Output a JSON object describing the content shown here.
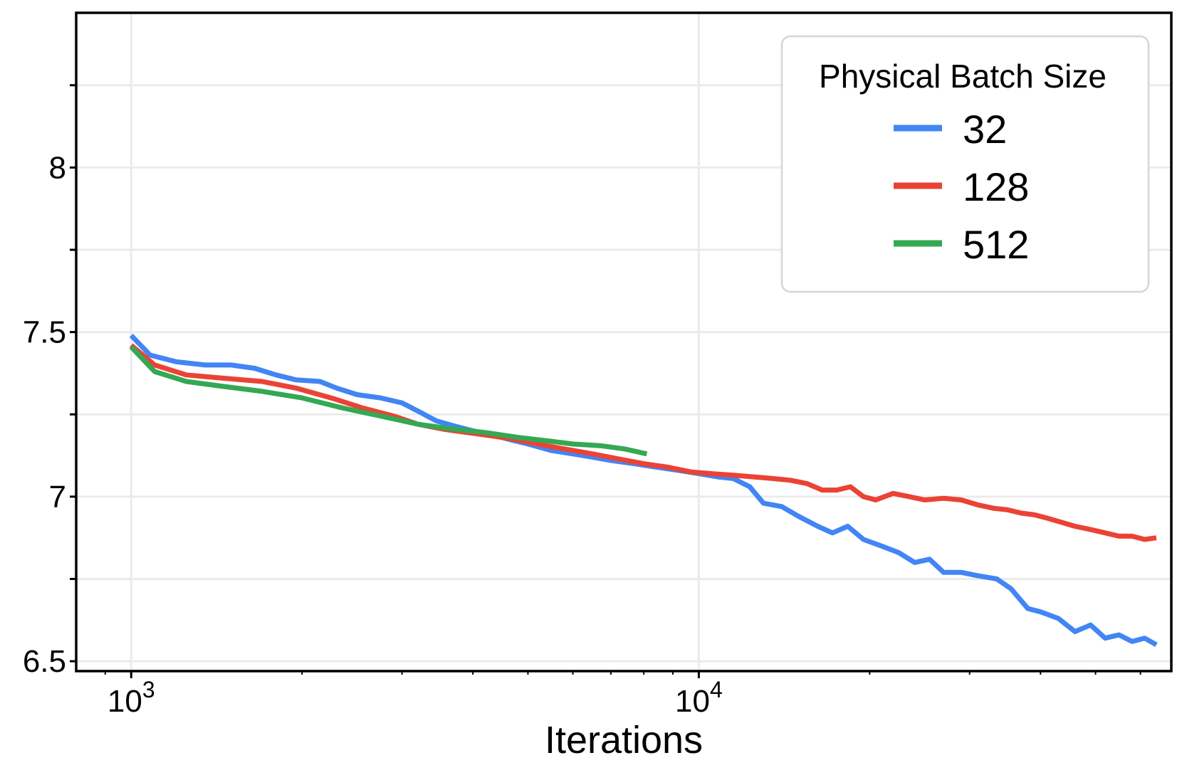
{
  "chart_data": {
    "type": "line",
    "title": "",
    "xlabel": "Iterations",
    "ylabel": "",
    "x_scale": "log",
    "xlim": [
      800,
      68000
    ],
    "ylim": [
      6.47,
      8.47
    ],
    "x_ticks": [
      {
        "value": 1000,
        "base": "10",
        "exp": "3"
      },
      {
        "value": 10000,
        "base": "10",
        "exp": "4"
      }
    ],
    "y_ticks": [
      {
        "value": 6.5,
        "label": "6.5"
      },
      {
        "value": 7,
        "label": "7"
      },
      {
        "value": 7.5,
        "label": "7.5"
      },
      {
        "value": 8,
        "label": "8"
      }
    ],
    "y_minor_ticks": [
      6.75,
      7.25,
      7.75,
      8.25
    ],
    "grid": true,
    "legend": {
      "title": "Physical Batch Size",
      "position": "top-right"
    },
    "series": [
      {
        "name": "32",
        "color": "#4285f4",
        "points": [
          [
            1000,
            7.49
          ],
          [
            1080,
            7.43
          ],
          [
            1200,
            7.41
          ],
          [
            1350,
            7.4
          ],
          [
            1500,
            7.4
          ],
          [
            1650,
            7.39
          ],
          [
            1800,
            7.37
          ],
          [
            1950,
            7.355
          ],
          [
            2150,
            7.35
          ],
          [
            2300,
            7.33
          ],
          [
            2500,
            7.31
          ],
          [
            2750,
            7.3
          ],
          [
            3000,
            7.285
          ],
          [
            3200,
            7.26
          ],
          [
            3450,
            7.23
          ],
          [
            3700,
            7.215
          ],
          [
            4000,
            7.2
          ],
          [
            4300,
            7.19
          ],
          [
            4600,
            7.175
          ],
          [
            5000,
            7.16
          ],
          [
            5500,
            7.14
          ],
          [
            6000,
            7.13
          ],
          [
            6500,
            7.12
          ],
          [
            7000,
            7.11
          ],
          [
            7700,
            7.1
          ],
          [
            8400,
            7.09
          ],
          [
            9200,
            7.08
          ],
          [
            10000,
            7.07
          ],
          [
            10800,
            7.06
          ],
          [
            11500,
            7.055
          ],
          [
            12300,
            7.03
          ],
          [
            13000,
            6.98
          ],
          [
            14000,
            6.97
          ],
          [
            15000,
            6.94
          ],
          [
            16200,
            6.91
          ],
          [
            17200,
            6.89
          ],
          [
            18300,
            6.91
          ],
          [
            19500,
            6.87
          ],
          [
            21000,
            6.85
          ],
          [
            22500,
            6.83
          ],
          [
            24000,
            6.8
          ],
          [
            25500,
            6.81
          ],
          [
            27000,
            6.77
          ],
          [
            29000,
            6.77
          ],
          [
            31000,
            6.76
          ],
          [
            33500,
            6.75
          ],
          [
            35500,
            6.72
          ],
          [
            38000,
            6.66
          ],
          [
            40000,
            6.65
          ],
          [
            43000,
            6.63
          ],
          [
            46000,
            6.59
          ],
          [
            49000,
            6.61
          ],
          [
            52000,
            6.57
          ],
          [
            55000,
            6.58
          ],
          [
            58000,
            6.56
          ],
          [
            61000,
            6.57
          ],
          [
            64000,
            6.55
          ]
        ]
      },
      {
        "name": "128",
        "color": "#ea4335",
        "points": [
          [
            1000,
            7.46
          ],
          [
            1100,
            7.4
          ],
          [
            1250,
            7.37
          ],
          [
            1450,
            7.36
          ],
          [
            1700,
            7.35
          ],
          [
            1950,
            7.33
          ],
          [
            2250,
            7.3
          ],
          [
            2550,
            7.27
          ],
          [
            2900,
            7.245
          ],
          [
            3200,
            7.22
          ],
          [
            3550,
            7.205
          ],
          [
            3900,
            7.195
          ],
          [
            4300,
            7.185
          ],
          [
            4700,
            7.175
          ],
          [
            5200,
            7.16
          ],
          [
            5800,
            7.145
          ],
          [
            6500,
            7.13
          ],
          [
            7200,
            7.115
          ],
          [
            8000,
            7.1
          ],
          [
            8800,
            7.09
          ],
          [
            9700,
            7.075
          ],
          [
            10500,
            7.07
          ],
          [
            11500,
            7.065
          ],
          [
            12500,
            7.06
          ],
          [
            13500,
            7.055
          ],
          [
            14500,
            7.05
          ],
          [
            15500,
            7.04
          ],
          [
            16500,
            7.02
          ],
          [
            17500,
            7.02
          ],
          [
            18500,
            7.03
          ],
          [
            19500,
            7.0
          ],
          [
            20500,
            6.99
          ],
          [
            22000,
            7.01
          ],
          [
            23500,
            7.0
          ],
          [
            25000,
            6.99
          ],
          [
            27000,
            6.995
          ],
          [
            29000,
            6.99
          ],
          [
            31000,
            6.975
          ],
          [
            33000,
            6.965
          ],
          [
            35000,
            6.96
          ],
          [
            37000,
            6.95
          ],
          [
            39000,
            6.945
          ],
          [
            41000,
            6.935
          ],
          [
            43000,
            6.925
          ],
          [
            46000,
            6.91
          ],
          [
            49000,
            6.9
          ],
          [
            52000,
            6.89
          ],
          [
            55000,
            6.88
          ],
          [
            58000,
            6.88
          ],
          [
            61000,
            6.87
          ],
          [
            64000,
            6.875
          ]
        ]
      },
      {
        "name": "512",
        "color": "#34a853",
        "points": [
          [
            1000,
            7.455
          ],
          [
            1100,
            7.38
          ],
          [
            1250,
            7.35
          ],
          [
            1450,
            7.335
          ],
          [
            1700,
            7.32
          ],
          [
            2000,
            7.3
          ],
          [
            2350,
            7.27
          ],
          [
            2750,
            7.245
          ],
          [
            3200,
            7.22
          ],
          [
            3700,
            7.205
          ],
          [
            4200,
            7.195
          ],
          [
            4800,
            7.18
          ],
          [
            5400,
            7.17
          ],
          [
            6000,
            7.16
          ],
          [
            6700,
            7.155
          ],
          [
            7400,
            7.145
          ],
          [
            8100,
            7.13
          ]
        ]
      }
    ]
  }
}
